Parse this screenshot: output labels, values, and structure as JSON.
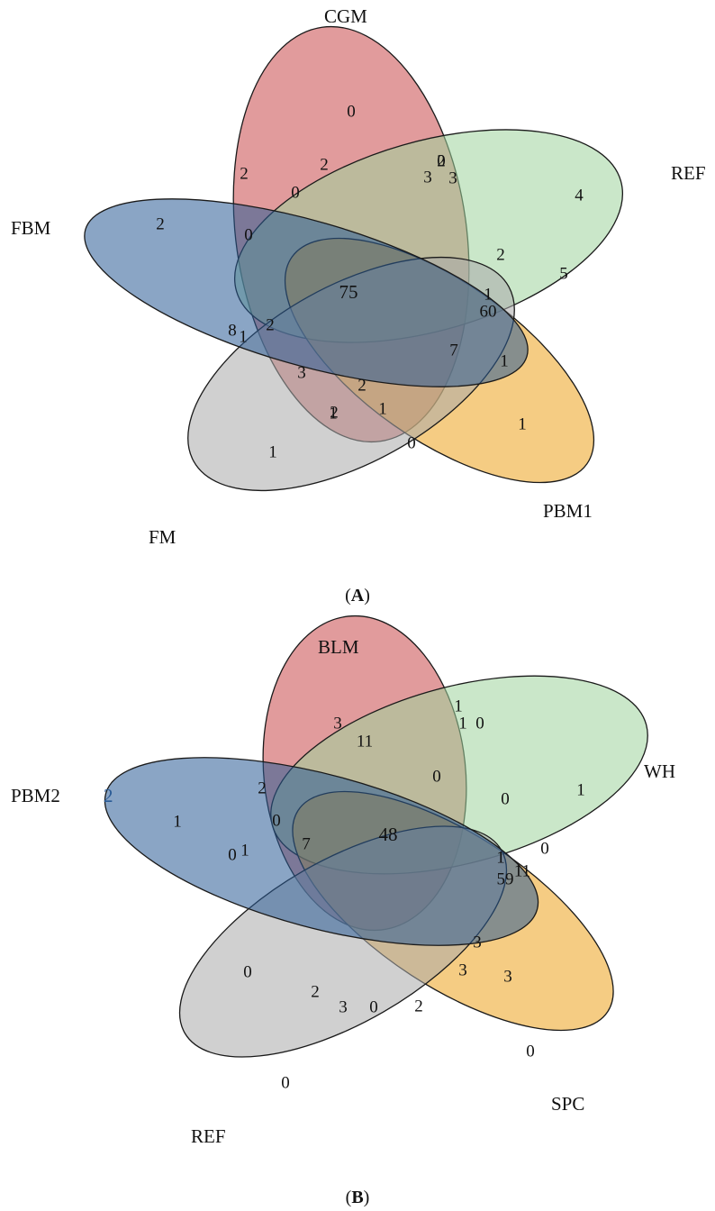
{
  "panels": [
    {
      "id": "A",
      "caption_open": "(",
      "caption_letter": "A",
      "caption_close": ")",
      "sets": [
        {
          "name": "CGM",
          "color": "#c9484b"
        },
        {
          "name": "REF",
          "color": "#9fd39c"
        },
        {
          "name": "PBM1",
          "color": "#eda21e"
        },
        {
          "name": "FM",
          "color": "#aaaaaa"
        },
        {
          "name": "FBM",
          "color": "#2a5b96"
        }
      ],
      "regions": [
        "0",
        "4",
        "1",
        "1",
        "2",
        "2",
        "0",
        "5",
        "1",
        "0",
        "1",
        "0",
        "8",
        "1",
        "2",
        "2",
        "1",
        "3",
        "2",
        "3",
        "7",
        "2",
        "0",
        "2",
        "3",
        "1",
        "60",
        "2",
        "75"
      ]
    },
    {
      "id": "B",
      "caption_open": "(",
      "caption_letter": "B",
      "caption_close": ")",
      "sets": [
        {
          "name": "BLM",
          "color": "#c9484b"
        },
        {
          "name": "WH",
          "color": "#9fd39c"
        },
        {
          "name": "SPC",
          "color": "#eda21e"
        },
        {
          "name": "REF",
          "color": "#aaaaaa"
        },
        {
          "name": "PBM2",
          "color": "#2a5b96"
        }
      ],
      "stray_mark": "2",
      "regions": [
        "11",
        "1",
        "0",
        "0",
        "1",
        "3",
        "0",
        "0",
        "3",
        "2",
        "3",
        "1",
        "0",
        "0",
        "0",
        "1",
        "1",
        "7",
        "0",
        "0",
        "3",
        "3",
        "2",
        "1",
        "0",
        "11",
        "59",
        "2",
        "48"
      ]
    }
  ]
}
